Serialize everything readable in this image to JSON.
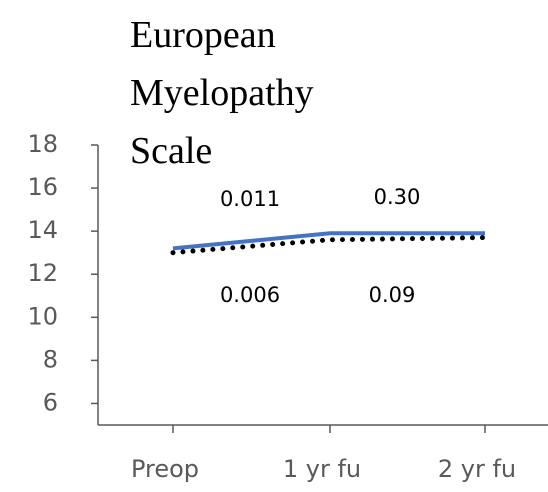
{
  "chart_data": {
    "type": "line",
    "title": "European Myelopathy Scale",
    "categories": [
      "Preop",
      "1 yr fu",
      "2 yr fu"
    ],
    "series": [
      {
        "color": "#4472c4",
        "style": "solid",
        "values": [
          13.2,
          13.9,
          13.9
        ]
      },
      {
        "color": "#000000",
        "style": "dotted",
        "values": [
          13.0,
          13.6,
          13.7
        ]
      }
    ],
    "annotations": [
      "0.011",
      "0.30",
      "0.006",
      "0.09"
    ],
    "ylim": [
      5,
      18
    ],
    "yticks": [
      6,
      8,
      10,
      12,
      14,
      16,
      18
    ],
    "grid": false
  }
}
